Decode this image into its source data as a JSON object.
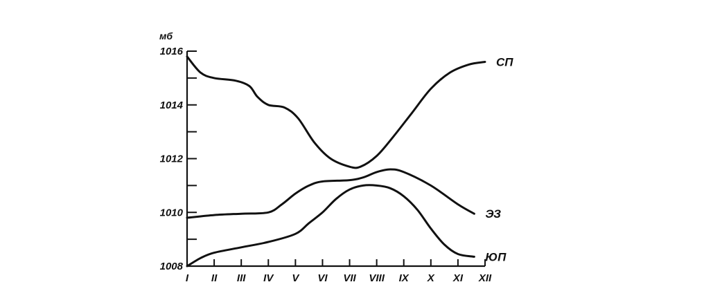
{
  "chart_data": {
    "type": "line",
    "ylabel": "мб",
    "ylim": [
      1008,
      1016
    ],
    "yticks": [
      1008,
      1010,
      1012,
      1014,
      1016
    ],
    "ytick_labels": [
      "1008",
      "1010",
      "1012",
      "1014",
      "1016"
    ],
    "categories": [
      "I",
      "II",
      "III",
      "IV",
      "V",
      "VI",
      "VII",
      "VIII",
      "IX",
      "X",
      "XI",
      "XII"
    ],
    "grid": false,
    "series": [
      {
        "name": "СП",
        "x": [
          1,
          1.5,
          2,
          2.8,
          3.3,
          3.6,
          4,
          4.6,
          5.1,
          5.7,
          6.3,
          7,
          7.4,
          8,
          8.6,
          9.3,
          10,
          10.7,
          11.4,
          12
        ],
        "values": [
          1015.8,
          1015.2,
          1015.0,
          1014.9,
          1014.7,
          1014.3,
          1014.0,
          1013.9,
          1013.5,
          1012.6,
          1012.0,
          1011.7,
          1011.7,
          1012.1,
          1012.8,
          1013.7,
          1014.6,
          1015.2,
          1015.5,
          1015.6
        ]
      },
      {
        "name": "ЭЗ",
        "x": [
          1,
          2,
          3,
          4,
          4.5,
          5,
          5.5,
          6,
          7,
          7.5,
          8,
          8.5,
          9,
          10,
          11,
          11.6
        ],
        "values": [
          1009.8,
          1009.9,
          1009.95,
          1010.0,
          1010.3,
          1010.7,
          1011.0,
          1011.15,
          1011.2,
          1011.3,
          1011.5,
          1011.6,
          1011.5,
          1011.0,
          1010.3,
          1009.95
        ]
      },
      {
        "name": "ЮП",
        "x": [
          1,
          1.5,
          2,
          3,
          4,
          5,
          5.5,
          6,
          6.5,
          7,
          7.5,
          8,
          8.5,
          9,
          9.5,
          10,
          10.5,
          11,
          11.6
        ],
        "values": [
          1008.0,
          1008.3,
          1008.5,
          1008.7,
          1008.9,
          1009.2,
          1009.6,
          1010.0,
          1010.5,
          1010.85,
          1011.0,
          1011.0,
          1010.9,
          1010.6,
          1010.1,
          1009.4,
          1008.8,
          1008.45,
          1008.35
        ]
      }
    ]
  }
}
